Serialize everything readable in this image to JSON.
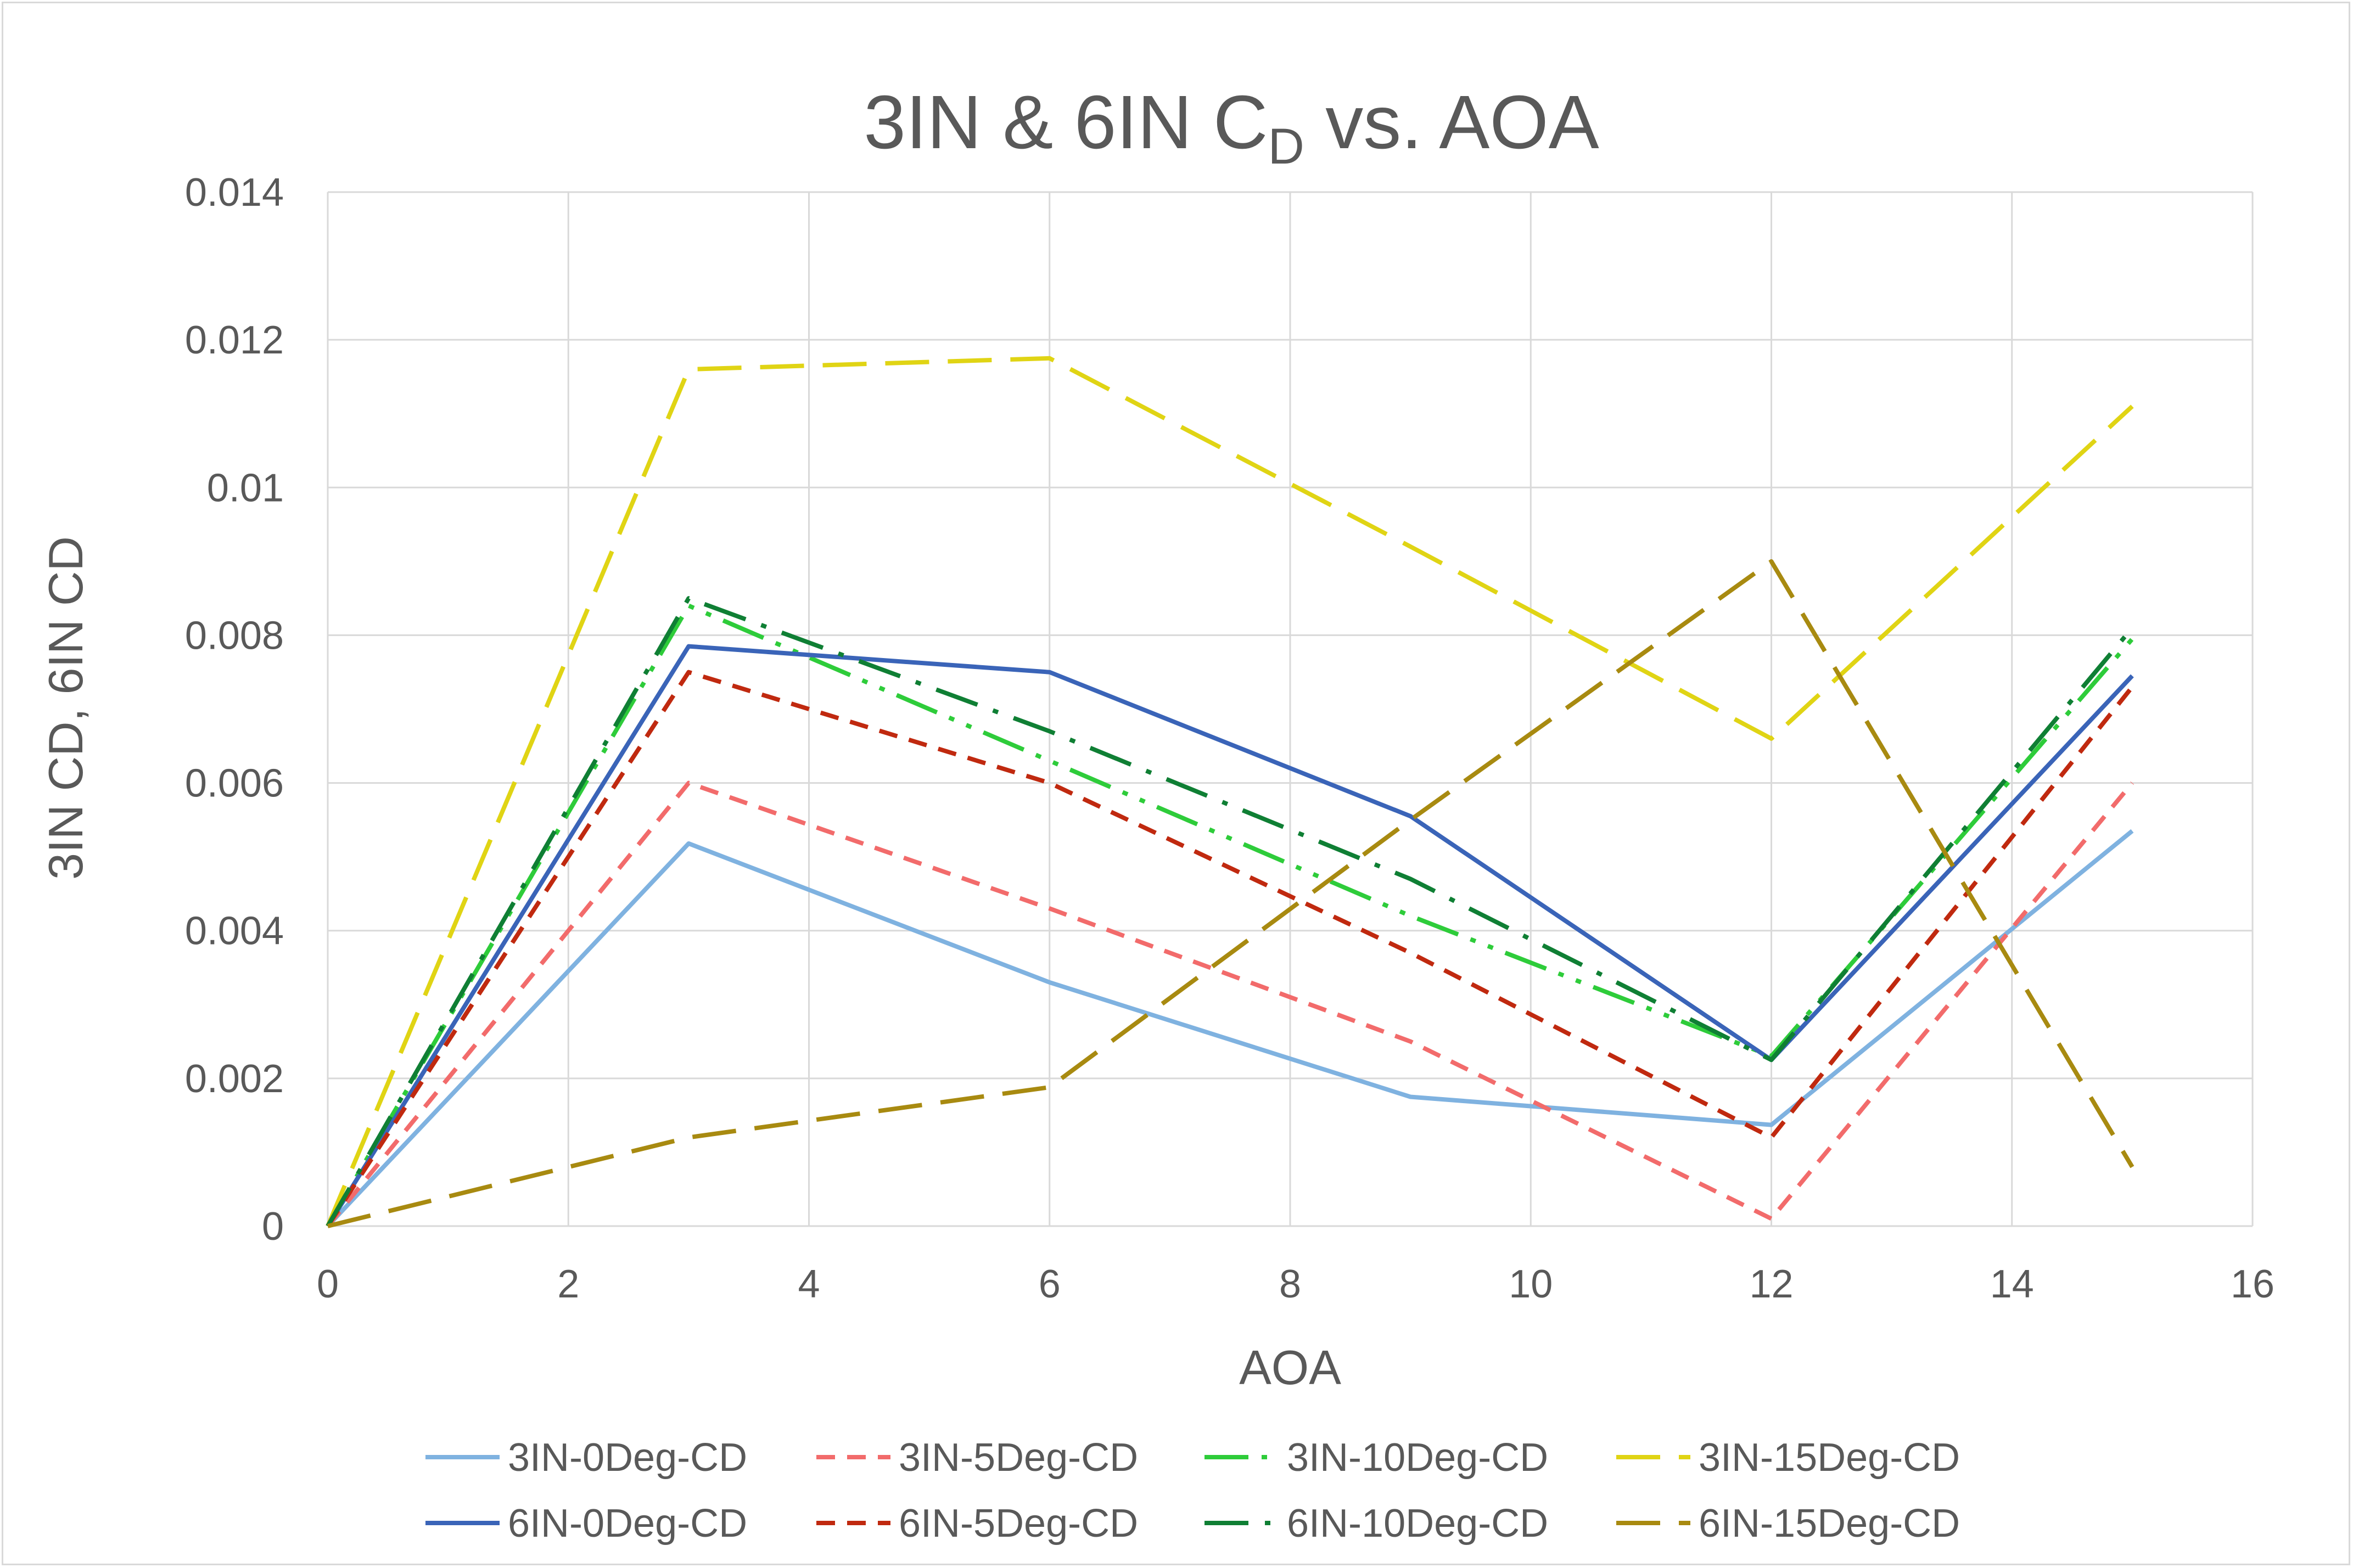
{
  "chart_data": {
    "type": "line",
    "title": "3IN & 6IN C",
    "title_subscript": "D",
    "title_suffix": " vs. AOA",
    "xlabel": "AOA",
    "ylabel": "3IN CD, 6IN CD",
    "xlim": [
      0,
      16
    ],
    "ylim": [
      0,
      0.014
    ],
    "x_ticks": [
      "0",
      "2",
      "4",
      "6",
      "8",
      "10",
      "12",
      "14",
      "16"
    ],
    "y_ticks": [
      "0",
      "0.002",
      "0.004",
      "0.006",
      "0.008",
      "0.01",
      "0.012",
      "0.014"
    ],
    "grid": true,
    "legend_position": "bottom",
    "x": [
      0,
      3,
      6,
      9,
      12,
      15
    ],
    "series": [
      {
        "name": "3IN-0Deg-CD",
        "values": [
          0,
          0.00518,
          0.0033,
          0.00175,
          0.00137,
          0.00535
        ],
        "color": "#7fb2e0",
        "dash": "solid"
      },
      {
        "name": "3IN-5Deg-CD",
        "values": [
          0,
          0.006,
          0.0043,
          0.0025,
          0.0001,
          0.006
        ],
        "color": "#f26b6b",
        "dash": "dash"
      },
      {
        "name": "3IN-10Deg-CD",
        "values": [
          0,
          0.0084,
          0.0063,
          0.0042,
          0.0023,
          0.00795
        ],
        "color": "#2ecc3a",
        "dash": "longdashdotdot"
      },
      {
        "name": "3IN-15Deg-CD",
        "values": [
          0,
          0.0116,
          0.01175,
          0.0092,
          0.0066,
          0.0111
        ],
        "color": "#e0d414",
        "dash": "longdash"
      },
      {
        "name": "6IN-0Deg-CD",
        "values": [
          0,
          0.00785,
          0.0075,
          0.00555,
          0.00225,
          0.00745
        ],
        "color": "#3a64b8",
        "dash": "solid"
      },
      {
        "name": "6IN-5Deg-CD",
        "values": [
          0,
          0.0075,
          0.006,
          0.0037,
          0.0012,
          0.0073
        ],
        "color": "#c0290f",
        "dash": "dash"
      },
      {
        "name": "6IN-10Deg-CD",
        "values": [
          0,
          0.0085,
          0.0067,
          0.0047,
          0.00225,
          0.0081
        ],
        "color": "#0f7f34",
        "dash": "longdashdot"
      },
      {
        "name": "6IN-15Deg-CD",
        "values": [
          0,
          0.0012,
          0.00188,
          0.0055,
          0.009,
          0.0008
        ],
        "color": "#a88a10",
        "dash": "longdash"
      }
    ]
  }
}
